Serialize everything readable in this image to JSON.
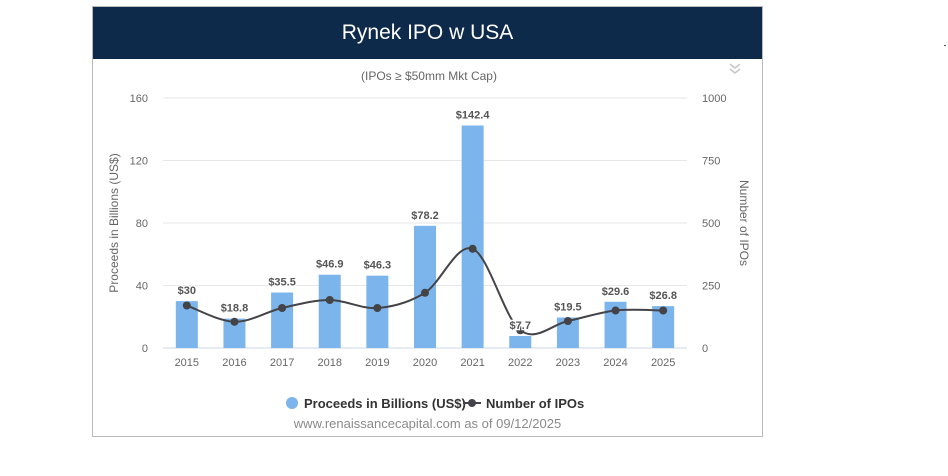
{
  "header": {
    "title": "Rynek IPO w USA"
  },
  "menu": {
    "icon": "double-chevron-down-icon"
  },
  "footer": {
    "source": "www.renaissancecapital.com as of 09/12/2025"
  },
  "colors": {
    "header_bg": "#0e2a4b",
    "bars": "#7cb5ec",
    "line": "#434348"
  },
  "chart_data": {
    "type": "bar",
    "subtitle": "(IPOs ≥ $50mm Mkt Cap)",
    "categories": [
      "2015",
      "2016",
      "2017",
      "2018",
      "2019",
      "2020",
      "2021",
      "2022",
      "2023",
      "2024",
      "2025"
    ],
    "series": [
      {
        "name": "Proceeds in Billions (US$)",
        "type": "bar",
        "axis": "left",
        "values": [
          30,
          18.8,
          35.5,
          46.9,
          46.3,
          78.2,
          142.4,
          7.7,
          19.5,
          29.6,
          26.8
        ],
        "labels": [
          "$30",
          "$18.8",
          "$35.5",
          "$46.9",
          "$46.3",
          "$78.2",
          "$142.4",
          "$7.7",
          "$19.5",
          "$29.6",
          "$26.8"
        ]
      },
      {
        "name": "Number of IPOs",
        "type": "line",
        "axis": "right",
        "values": [
          170,
          105,
          160,
          192,
          160,
          221,
          397,
          71,
          108,
          150,
          150
        ]
      }
    ],
    "y_left": {
      "label": "Proceeds in Billions (US$)",
      "range": [
        0,
        160
      ],
      "ticks": [
        "0",
        "40",
        "80",
        "120",
        "160"
      ]
    },
    "y_right": {
      "label": "Number of IPOs",
      "range": [
        0,
        1000
      ],
      "ticks": [
        "0",
        "250",
        "500",
        "750",
        "1000"
      ]
    },
    "grid": true,
    "legend_position": "bottom-center"
  }
}
